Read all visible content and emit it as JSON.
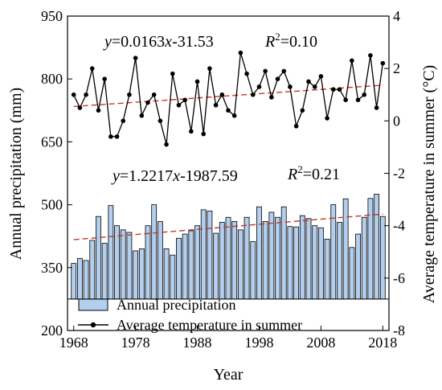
{
  "chart_data": {
    "type": "bar+line",
    "title": "",
    "xlabel": "Year",
    "ylabel_left": "Annual precipitation (mm)",
    "ylabel_right": "Average temperature in summer (°C)",
    "xlim": [
      1967,
      2019
    ],
    "ylim_left": [
      200,
      950
    ],
    "ylim_right": [
      -8,
      4
    ],
    "x_ticks": [
      1968,
      1978,
      1988,
      1998,
      2008,
      2018
    ],
    "y_ticks_left": [
      200,
      350,
      500,
      650,
      800,
      950
    ],
    "y_ticks_right": [
      -8,
      -6,
      -4,
      -2,
      0,
      2,
      4
    ],
    "legend": {
      "placement": "bottom-left",
      "entries": [
        "Annual precipitation",
        "Average temperature in summer"
      ]
    },
    "trend_labels": {
      "temperature": {
        "prefix": "y",
        "equation": "=0.0163",
        "var": "x",
        "rest": "-31.53",
        "r2_label": "R",
        "r2_sup": "2",
        "r2_value": "=0.10"
      },
      "precipitation": {
        "prefix": "y",
        "equation": "=1.2217",
        "var": "x",
        "rest": "-1987.59",
        "r2_label": "R",
        "r2_sup": "2",
        "r2_value": "=0.21"
      }
    },
    "trends": {
      "temperature": {
        "slope": 0.0163,
        "intercept": -31.53
      },
      "precipitation": {
        "slope": 1.2217,
        "intercept": -1987.59
      }
    },
    "bar_baseline": 275,
    "series": [
      {
        "name": "Annual precipitation",
        "axis": "left",
        "type": "bar",
        "color": "#b3cfee",
        "x": [
          1968,
          1969,
          1970,
          1971,
          1972,
          1973,
          1974,
          1975,
          1976,
          1977,
          1978,
          1979,
          1980,
          1981,
          1982,
          1983,
          1984,
          1985,
          1986,
          1987,
          1988,
          1989,
          1990,
          1991,
          1992,
          1993,
          1994,
          1995,
          1996,
          1997,
          1998,
          1999,
          2000,
          2001,
          2002,
          2003,
          2004,
          2005,
          2006,
          2007,
          2008,
          2009,
          2010,
          2011,
          2012,
          2013,
          2014,
          2015,
          2016,
          2017,
          2018
        ],
        "values": [
          360,
          372,
          367,
          415,
          472,
          408,
          498,
          450,
          440,
          434,
          390,
          395,
          450,
          500,
          460,
          395,
          380,
          420,
          430,
          438,
          450,
          488,
          485,
          432,
          458,
          470,
          460,
          440,
          470,
          412,
          495,
          460,
          482,
          470,
          495,
          448,
          447,
          474,
          467,
          450,
          445,
          418,
          500,
          458,
          514,
          398,
          430,
          470,
          515,
          525,
          472
        ]
      },
      {
        "name": "Average temperature in summer",
        "axis": "right",
        "type": "line",
        "color": "#000000",
        "x": [
          1968,
          1969,
          1970,
          1971,
          1972,
          1973,
          1974,
          1975,
          1976,
          1977,
          1978,
          1979,
          1980,
          1981,
          1982,
          1983,
          1984,
          1985,
          1986,
          1987,
          1988,
          1989,
          1990,
          1991,
          1992,
          1993,
          1994,
          1995,
          1996,
          1997,
          1998,
          1999,
          2000,
          2001,
          2002,
          2003,
          2004,
          2005,
          2006,
          2007,
          2008,
          2009,
          2010,
          2011,
          2012,
          2013,
          2014,
          2015,
          2016,
          2017,
          2018
        ],
        "values": [
          1.0,
          0.5,
          1.0,
          2.0,
          0.4,
          1.6,
          -0.6,
          -0.6,
          0.0,
          1.0,
          2.4,
          0.2,
          0.7,
          1.0,
          0.0,
          -0.9,
          1.8,
          0.6,
          0.8,
          -0.4,
          1.5,
          -0.5,
          2.0,
          0.6,
          1.0,
          0.4,
          0.2,
          2.6,
          1.8,
          1.0,
          1.3,
          1.9,
          0.9,
          1.6,
          1.9,
          1.3,
          -0.2,
          0.4,
          1.5,
          1.3,
          1.7,
          0.1,
          1.2,
          1.2,
          0.8,
          2.3,
          0.8,
          1.0,
          2.5,
          0.5,
          2.2
        ]
      }
    ]
  }
}
